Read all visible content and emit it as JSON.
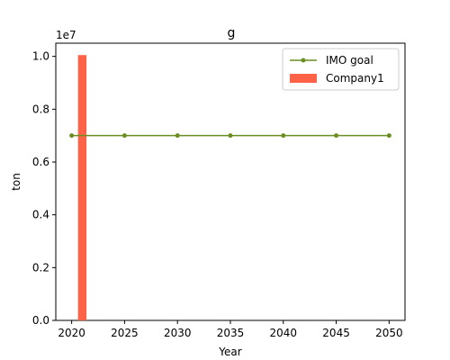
{
  "chart_data": {
    "type": "bar",
    "title": "g",
    "xlabel": "Year",
    "ylabel": "ton",
    "y_offset_label": "1e7",
    "xlim": [
      2018.5,
      2051.5
    ],
    "ylim": [
      0,
      10500000
    ],
    "x_ticks": [
      2020,
      2025,
      2030,
      2035,
      2040,
      2045,
      2050
    ],
    "x_tick_labels": [
      "2020",
      "2025",
      "2030",
      "2035",
      "2040",
      "2045",
      "2050"
    ],
    "y_ticks": [
      0,
      2000000,
      4000000,
      6000000,
      8000000,
      10000000
    ],
    "y_tick_labels": [
      "0.0",
      "0.2",
      "0.4",
      "0.6",
      "0.8",
      "1.0"
    ],
    "grid": false,
    "legend_position": "top-right",
    "series": [
      {
        "name": "IMO goal",
        "type": "line",
        "marker": "circle",
        "color": "#6b8e23",
        "x": [
          2020,
          2025,
          2030,
          2035,
          2040,
          2045,
          2050
        ],
        "values": [
          7000000,
          7000000,
          7000000,
          7000000,
          7000000,
          7000000,
          7000000
        ]
      },
      {
        "name": "Company1",
        "type": "bar",
        "color": "#ff6347",
        "x": [
          2021
        ],
        "values": [
          10050000
        ]
      }
    ]
  }
}
